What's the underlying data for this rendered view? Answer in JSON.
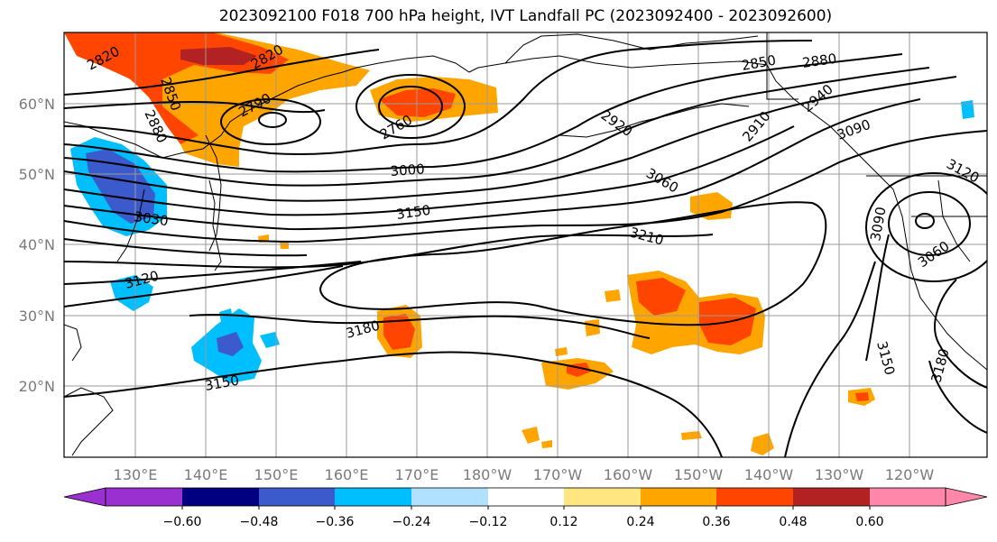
{
  "title": "2023092100 F018 700 hPa height, IVT Landfall PC (2023092400 - 2023092600)",
  "lat_labels": [
    "60°N",
    "50°N",
    "40°N",
    "30°N",
    "20°N"
  ],
  "lon_labels": [
    "130°E",
    "140°E",
    "150°E",
    "160°E",
    "170°E",
    "180°W",
    "170°W",
    "160°W",
    "150°W",
    "140°W",
    "130°W",
    "120°W"
  ],
  "contour_labels": [
    "2820",
    "2820",
    "2850",
    "2880",
    "2790",
    "2760",
    "2850",
    "2880",
    "2940",
    "2910",
    "2920",
    "3090",
    "3000",
    "3060",
    "3120",
    "3030",
    "3150",
    "3210",
    "3090",
    "3060",
    "3120",
    "3180",
    "3150",
    "3150",
    "3180"
  ],
  "colorbar": {
    "ticks": [
      "−0.60",
      "−0.48",
      "−0.36",
      "−0.24",
      "−0.12",
      "0.12",
      "0.24",
      "0.36",
      "0.48",
      "0.60"
    ],
    "colors": [
      "#9b30d0",
      "#000080",
      "#3b5bcc",
      "#00bfff",
      "#b0e2ff",
      "#ffffff",
      "#ffe680",
      "#ffa500",
      "#ff4500",
      "#b22222",
      "#ff88aa"
    ]
  }
}
